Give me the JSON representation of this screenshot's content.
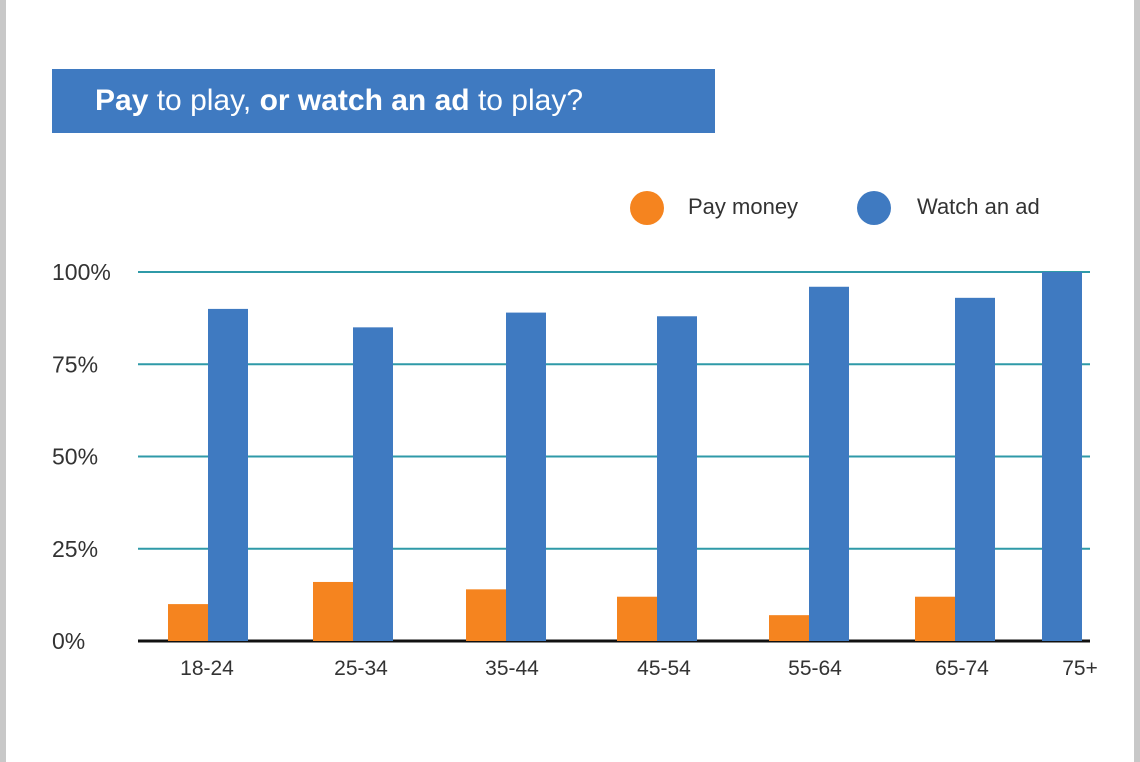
{
  "title": {
    "part1_bold": "Pay",
    "part2": " to play, ",
    "part3_bold": "or watch an ad",
    "part4": " to play?"
  },
  "colors": {
    "banner": "#3f7ac1",
    "pay_money": "#f5841f",
    "watch_ad": "#3f7ac1",
    "gridline": "#2f9aa8",
    "baseline": "#111111"
  },
  "chart_data": {
    "type": "bar",
    "categories": [
      "18-24",
      "25-34",
      "35-44",
      "45-54",
      "55-64",
      "65-74",
      "75+"
    ],
    "series": [
      {
        "name": "Pay money",
        "values": [
          10,
          16,
          14,
          12,
          7,
          12,
          null
        ]
      },
      {
        "name": "Watch an ad",
        "values": [
          90,
          85,
          89,
          88,
          96,
          93,
          100
        ]
      }
    ],
    "ylim": [
      0,
      100
    ],
    "yticks": [
      "0%",
      "25%",
      "50%",
      "75%",
      "100%"
    ],
    "ytick_values": [
      0,
      25,
      50,
      75,
      100
    ],
    "grid": true,
    "legend": "top-right"
  }
}
